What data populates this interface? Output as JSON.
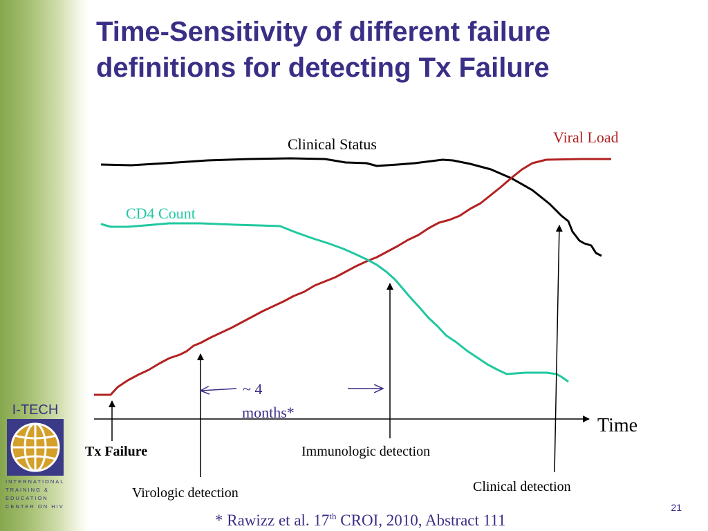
{
  "title": {
    "line1": "Time-Sensitivity of different failure",
    "line2": "definitions for detecting Tx Failure"
  },
  "logo": {
    "name": "I-TECH",
    "tagline": [
      "INTERNATIONAL",
      "TRAINING &",
      "EDUCATION",
      "CENTER ON HIV"
    ]
  },
  "diagram": {
    "x_axis_label": "Time",
    "curves": {
      "clinical_status": {
        "label": "Clinical Status",
        "color": "#000000"
      },
      "viral_load": {
        "label": "Viral Load",
        "color": "#b22222"
      },
      "cd4_count": {
        "label": "CD4 Count",
        "color": "#20c8a0"
      }
    },
    "markers": {
      "tx_failure": "Tx Failure",
      "virologic": "Virologic detection",
      "immunologic": "Immunologic detection",
      "clinical": "Clinical detection"
    },
    "interval": {
      "line1": "~ 4",
      "line2": "months*"
    },
    "arrow_color": "#3a2f86"
  },
  "citation": {
    "before": "* Rawizz et al. 17",
    "sup": "th",
    "after": " CROI, 2010, Abstract 111"
  },
  "page_number": "21"
}
